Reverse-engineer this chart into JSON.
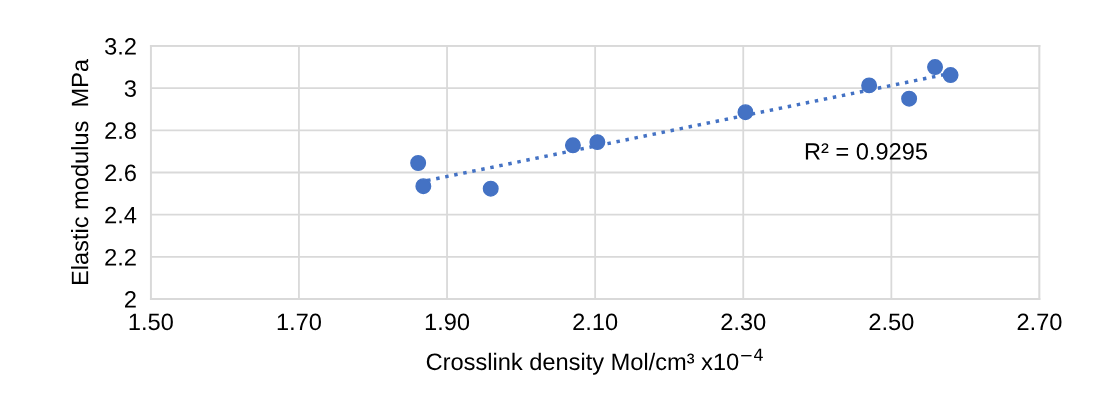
{
  "chart_data": {
    "type": "scatter",
    "xlabel": "Crosslink density Mol/cm³ x10$^{−4}$",
    "ylabel": "Elastic modulus  MPa",
    "series": [
      {
        "color": "#4472c4",
        "marker": "circle",
        "x": [
          1.861,
          1.868,
          1.959,
          2.07,
          2.103,
          2.303,
          2.47,
          2.524,
          2.559,
          2.58
        ],
        "values": [
          2.645,
          2.535,
          2.523,
          2.729,
          2.744,
          2.886,
          3.013,
          2.95,
          3.1,
          3.062
        ]
      },
      {
        "type": "line",
        "color": "#4472c4",
        "marker": "none",
        "line_style": "dotted",
        "x": [
          1.861,
          2.58
        ],
        "values": [
          2.553,
          3.07
        ]
      }
    ],
    "annotations": [
      "R² = 0.9295"
    ],
    "xlim": [
      1.5,
      2.7
    ],
    "xticks": [
      {
        "value": 1.5,
        "label": "1.50"
      },
      {
        "value": 1.7,
        "label": "1.70"
      },
      {
        "value": 1.9,
        "label": "1.90"
      },
      {
        "value": 2.1,
        "label": "2.10"
      },
      {
        "value": 2.3,
        "label": "2.30"
      },
      {
        "value": 2.5,
        "label": "2.50"
      },
      {
        "value": 2.7,
        "label": "2.70"
      }
    ],
    "ylim": [
      2,
      3.2
    ],
    "yticks": [
      2,
      2.2,
      2.4,
      2.6,
      2.8,
      3,
      3.2
    ],
    "grid": true,
    "legend": false
  }
}
